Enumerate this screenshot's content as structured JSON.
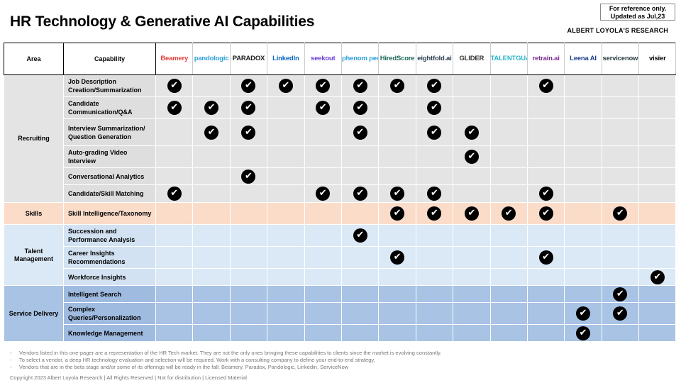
{
  "title": "HR Technology & Generative AI Capabilities",
  "reference_note": [
    "For reference only.",
    "Updated as Jul,23"
  ],
  "research_label": "ALBERT LOYOLA'S RESEARCH",
  "headers": {
    "area": "Area",
    "capability": "Capability"
  },
  "vendors": [
    {
      "name": "Beamery",
      "color": "#e5403b"
    },
    {
      "name": "pandologic",
      "color": "#2a9fd6"
    },
    {
      "name": "PARADOX",
      "color": "#1d1d1b"
    },
    {
      "name": "LinkedIn",
      "color": "#0a66c2"
    },
    {
      "name": "seekout",
      "color": "#6b3fd4"
    },
    {
      "name": "phenom people",
      "color": "#2b9fd8"
    },
    {
      "name": "HiredScore",
      "color": "#1f6b5a"
    },
    {
      "name": "eightfold.ai",
      "color": "#2c3e50"
    },
    {
      "name": "GLIDER",
      "color": "#333333"
    },
    {
      "name": "TALENTGUARD",
      "color": "#28b5c9"
    },
    {
      "name": "retrain.ai",
      "color": "#7b2f8e"
    },
    {
      "name": "Leena AI",
      "color": "#1d3f8c"
    },
    {
      "name": "servicenow",
      "color": "#293e40"
    },
    {
      "name": "visier",
      "color": "#000000"
    }
  ],
  "check_symbol": "✔",
  "groups": [
    {
      "area": "Recruiting",
      "class": "g-rec",
      "rows": [
        {
          "capability": "Job Description Creation/Summarization",
          "checks": [
            1,
            0,
            1,
            1,
            1,
            1,
            1,
            1,
            0,
            0,
            1,
            0,
            0,
            0
          ]
        },
        {
          "capability": "Candidate Communication/Q&A",
          "checks": [
            1,
            1,
            1,
            0,
            1,
            1,
            0,
            1,
            0,
            0,
            0,
            0,
            0,
            0
          ]
        },
        {
          "capability": "Interview Summarization/ Question Generation",
          "checks": [
            0,
            1,
            1,
            0,
            0,
            1,
            0,
            1,
            1,
            0,
            0,
            0,
            0,
            0
          ]
        },
        {
          "capability": "Auto-grading Video Interview",
          "checks": [
            0,
            0,
            0,
            0,
            0,
            0,
            0,
            0,
            1,
            0,
            0,
            0,
            0,
            0
          ]
        },
        {
          "capability": "Conversational Analytics",
          "checks": [
            0,
            0,
            1,
            0,
            0,
            0,
            0,
            0,
            0,
            0,
            0,
            0,
            0,
            0
          ]
        },
        {
          "capability": "Candidate/Skill Matching",
          "checks": [
            1,
            0,
            0,
            0,
            1,
            1,
            1,
            1,
            0,
            0,
            1,
            0,
            0,
            0
          ]
        }
      ]
    },
    {
      "area": "Skills",
      "class": "g-ski",
      "rows": [
        {
          "capability": "Skill Intelligence/Taxonomy",
          "checks": [
            0,
            0,
            0,
            0,
            0,
            0,
            1,
            1,
            1,
            1,
            1,
            0,
            1,
            0
          ]
        }
      ]
    },
    {
      "area": "Talent Management",
      "class": "g-tal",
      "rows": [
        {
          "capability": "Succession and Performance Analysis",
          "checks": [
            0,
            0,
            0,
            0,
            0,
            1,
            0,
            0,
            0,
            0,
            0,
            0,
            0,
            0
          ]
        },
        {
          "capability": "Career Insights Recommendations",
          "checks": [
            0,
            0,
            0,
            0,
            0,
            0,
            1,
            0,
            0,
            0,
            1,
            0,
            0,
            0
          ]
        },
        {
          "capability": "Workforce Insights",
          "checks": [
            0,
            0,
            0,
            0,
            0,
            0,
            0,
            0,
            0,
            0,
            0,
            0,
            0,
            1
          ]
        }
      ]
    },
    {
      "area": "Service Delivery",
      "class": "g-ser",
      "rows": [
        {
          "capability": "Intelligent Search",
          "checks": [
            0,
            0,
            0,
            0,
            0,
            0,
            0,
            0,
            0,
            0,
            0,
            0,
            1,
            0
          ]
        },
        {
          "capability": "Complex Queries/Personalization",
          "checks": [
            0,
            0,
            0,
            0,
            0,
            0,
            0,
            0,
            0,
            0,
            0,
            1,
            1,
            0
          ]
        },
        {
          "capability": "Knowledge Management",
          "checks": [
            0,
            0,
            0,
            0,
            0,
            0,
            0,
            0,
            0,
            0,
            0,
            1,
            0,
            0
          ]
        }
      ]
    }
  ],
  "notes": [
    "Vendors listed in this one-pager are a representation of the HR Tech market. They are not the only ones bringing these capabilities to clients since the market is evolving constantly.",
    "To select a vendor, a deep HR technology evaluation and selection will be required. Work with a consulting company to define your end-to-end strategy.",
    "Vendors that are in the beta stage and/or some of its offerings will be ready in the fall: Beamery, Paradox, Pandologic, Linkedin, ServiceNow"
  ],
  "copyright": "Copyright 2023 Albert Loyola Research | All Rights Reserved | Not for distribution | Licensed Material"
}
